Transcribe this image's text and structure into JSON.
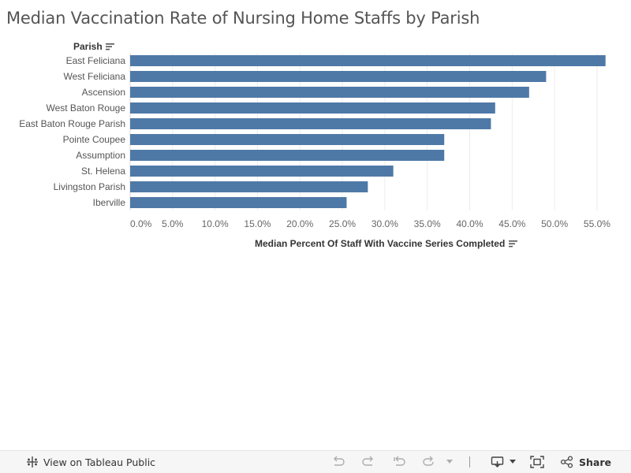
{
  "title": "Median Vaccination Rate of Nursing Home Staffs by Parish",
  "row_header": "Parish",
  "chart_data": {
    "type": "bar",
    "orientation": "horizontal",
    "categories": [
      "East Feliciana",
      "West Feliciana",
      "Ascension",
      "West Baton Rouge",
      "East Baton Rouge Parish",
      "Pointe Coupee",
      "Assumption",
      "St. Helena",
      "Livingston Parish",
      "Iberville"
    ],
    "values": [
      56.0,
      49.0,
      47.0,
      43.0,
      42.5,
      37.0,
      37.0,
      31.0,
      28.0,
      25.5
    ],
    "xlabel": "Median Percent Of Staff With Vaccine Series Completed",
    "ylabel": "Parish",
    "xlim": [
      0,
      59
    ],
    "x_ticks": [
      "0.0%",
      "5.0%",
      "10.0%",
      "15.0%",
      "20.0%",
      "25.0%",
      "30.0%",
      "35.0%",
      "40.0%",
      "45.0%",
      "50.0%",
      "55.0%"
    ],
    "bar_color": "#4e79a7",
    "grid": true
  },
  "toolbar": {
    "view_label": "View on Tableau Public",
    "share_label": "Share",
    "icons": [
      "tableau-icon",
      "undo-icon",
      "redo-icon",
      "revert-icon",
      "refresh-icon",
      "caret-down-icon",
      "download-icon",
      "fullscreen-icon",
      "share-icon"
    ]
  }
}
